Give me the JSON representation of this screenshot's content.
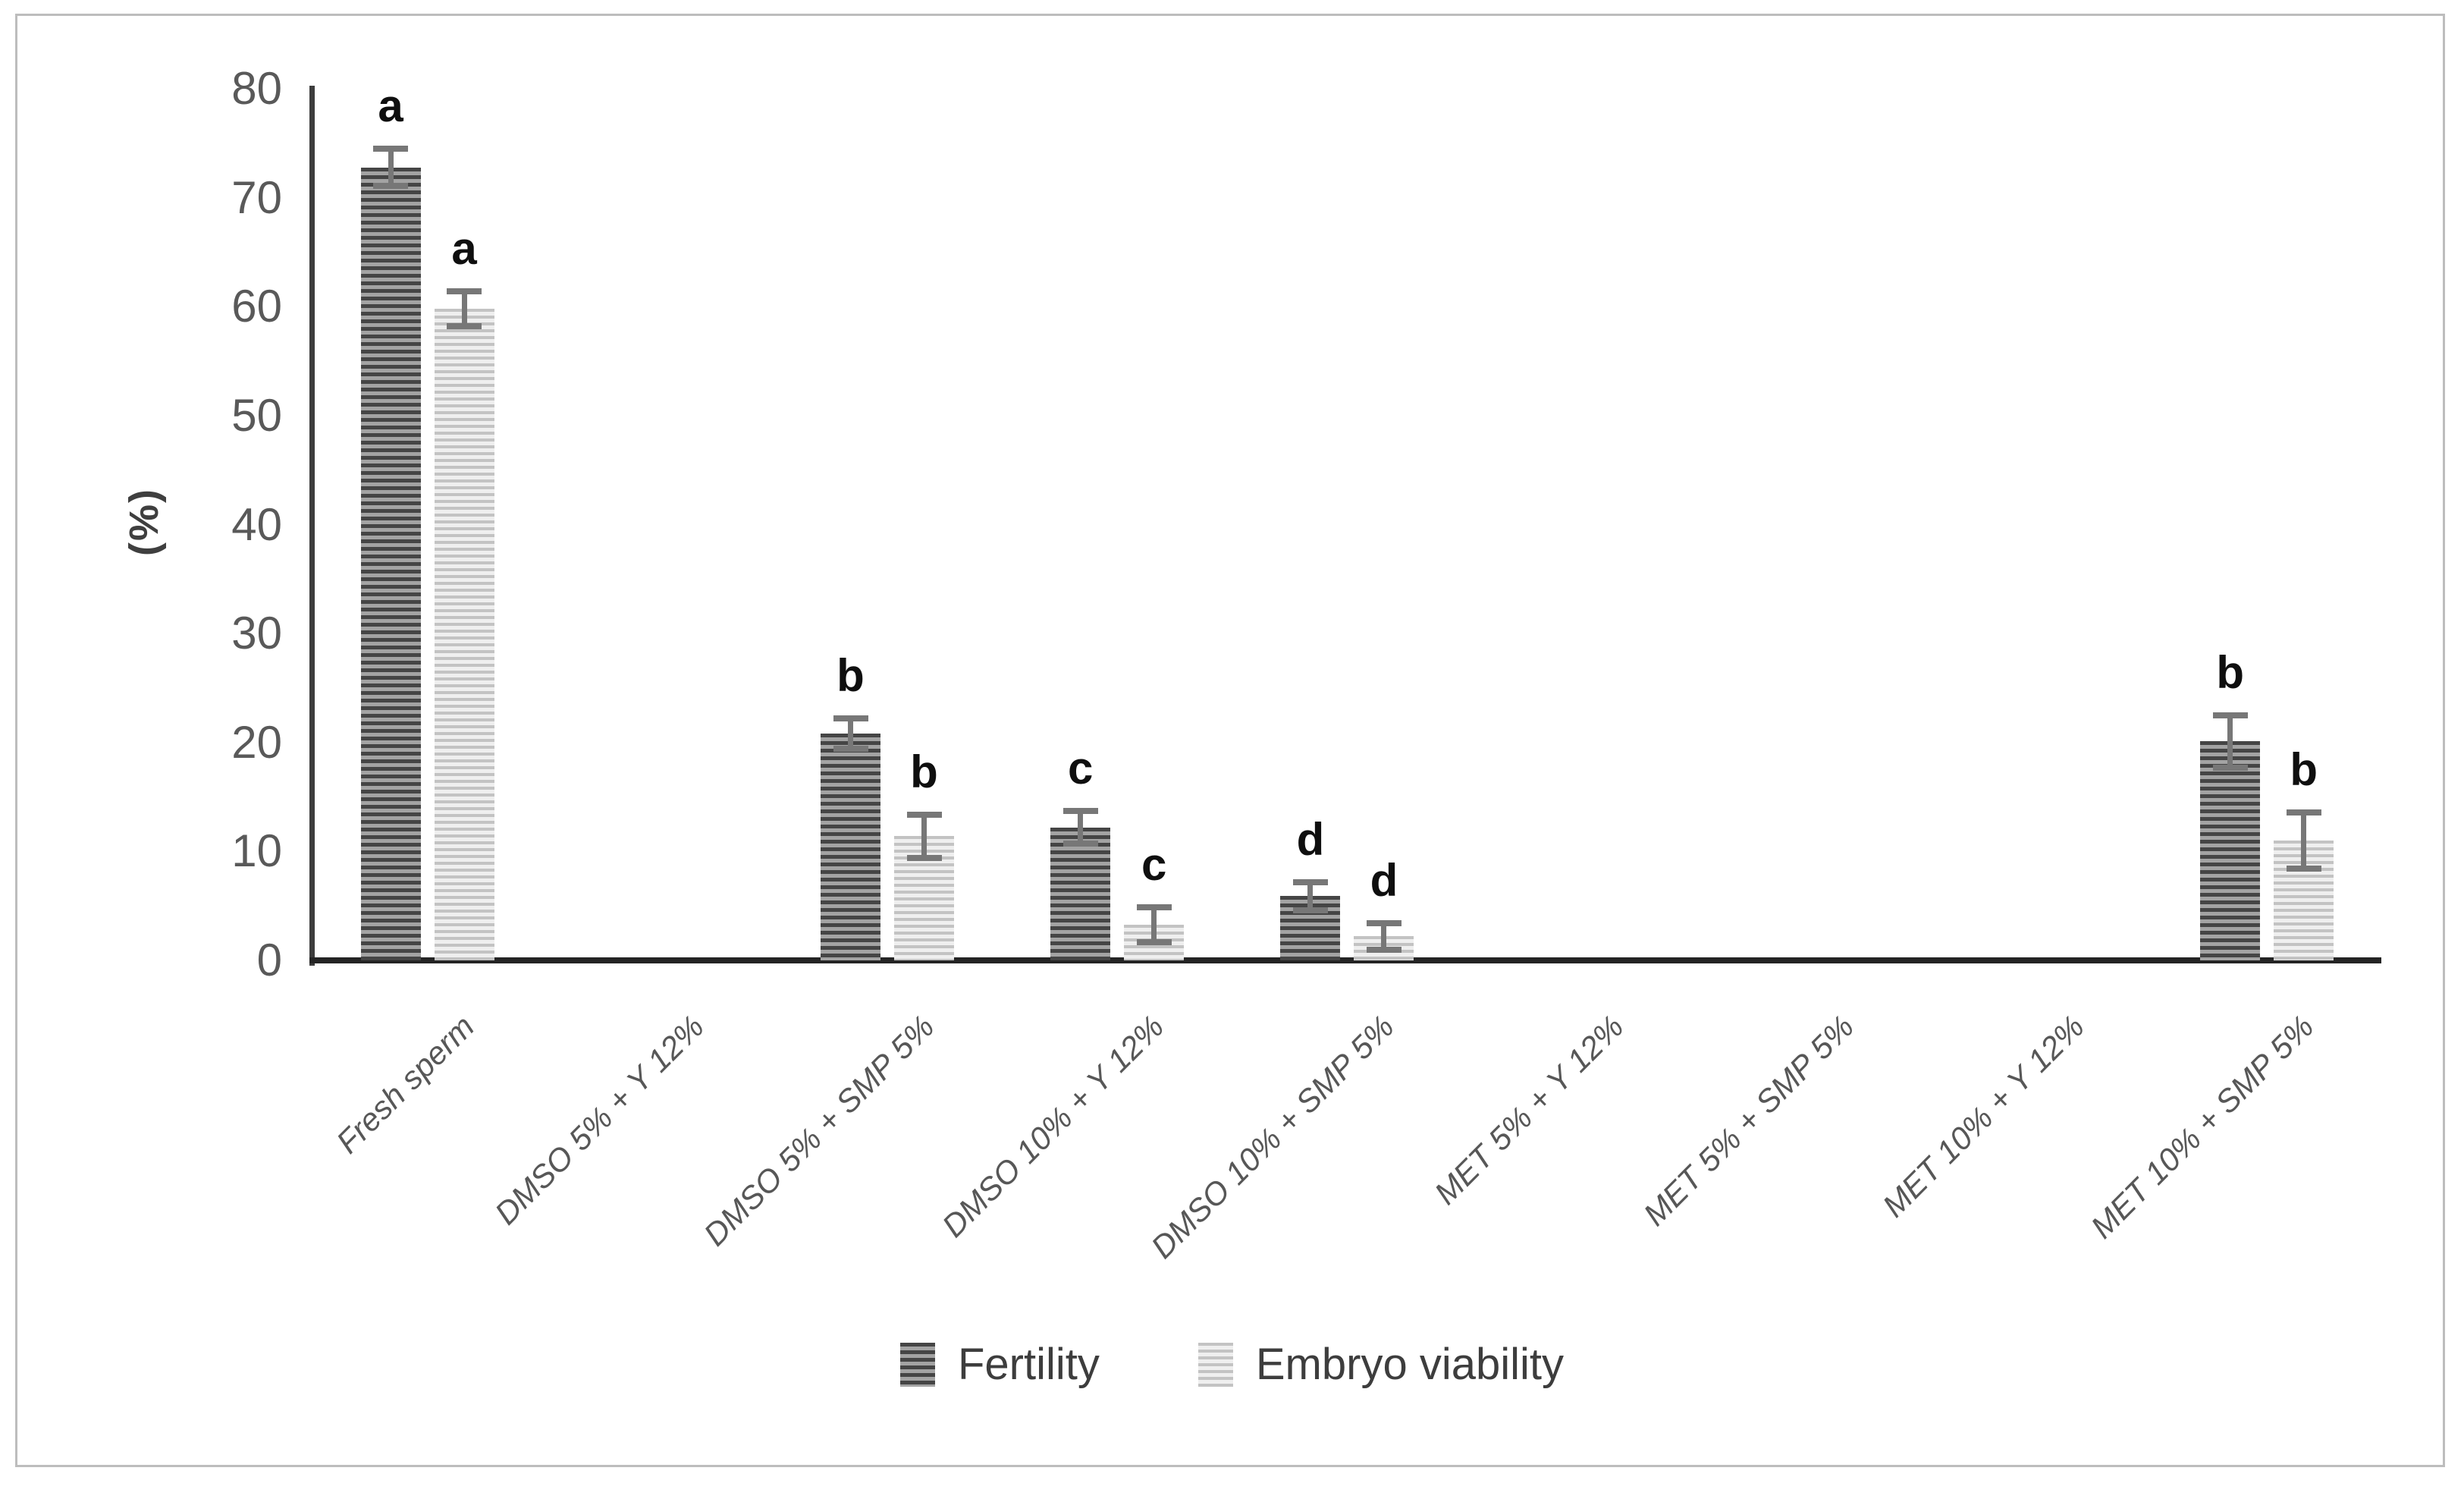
{
  "figure": {
    "background": "#ffffff",
    "border_color": "#bdbdbd",
    "axis_color": "#2e2e2e",
    "tick_label_color": "#595959",
    "letter_color": "#0f0f0f"
  },
  "chart_data": {
    "type": "bar",
    "title": "",
    "xlabel": "",
    "ylabel": "(%)",
    "ylim": [
      0,
      80
    ],
    "y_ticks": [
      0,
      10,
      20,
      30,
      40,
      50,
      60,
      70,
      80
    ],
    "grid": false,
    "legend_position": "bottom-center",
    "categories": [
      "Fresh sperm",
      "DMSO 5% + Y 12%",
      "DMSO 5% + SMP 5%",
      "DMSO 10% + Y 12%",
      "DMSO 10% + SMP 5%",
      "MET 5% + Y 12%",
      "MET 5% + SMP 5%",
      "MET 10% + Y 12%",
      "MET 10% + SMP 5%"
    ],
    "series": [
      {
        "name": "Fertility",
        "pattern": "dark-horizontal-stripes",
        "color": "#595959",
        "values": [
          72.8,
          0,
          20.8,
          12.2,
          5.9,
          0,
          0,
          0,
          20.1
        ],
        "errors": [
          1.7,
          0,
          1.4,
          1.5,
          1.3,
          0,
          0,
          0,
          2.4
        ],
        "letters": [
          "a",
          "",
          "b",
          "c",
          "d",
          "",
          "",
          "",
          "b"
        ]
      },
      {
        "name": "Embryo viability",
        "pattern": "light-horizontal-stripes",
        "color": "#c9c9c9",
        "values": [
          59.8,
          0,
          11.4,
          3.3,
          2.2,
          0,
          0,
          0,
          11.0
        ],
        "errors": [
          1.6,
          0,
          2.0,
          1.6,
          1.2,
          0,
          0,
          0,
          2.6
        ],
        "letters": [
          "a",
          "",
          "b",
          "c",
          "d",
          "",
          "",
          "",
          "b"
        ]
      }
    ]
  }
}
